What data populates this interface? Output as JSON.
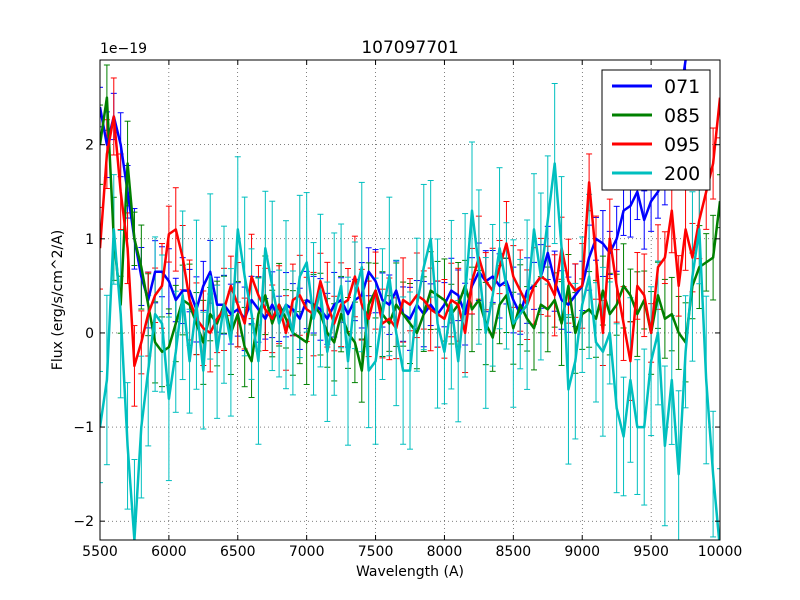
{
  "chart_data": {
    "type": "line",
    "title": "107097701",
    "xlabel": "Wavelength (A)",
    "ylabel": "Flux (erg/s/cm^2/A)",
    "y_scale_label": "1e−19",
    "xlim": [
      5500,
      10000
    ],
    "ylim": [
      -2.2,
      2.9
    ],
    "x_ticks": [
      5500,
      6000,
      6500,
      7000,
      7500,
      8000,
      8500,
      9000,
      9500,
      10000
    ],
    "x_tick_labels": [
      "5500",
      "6000",
      "6500",
      "7000",
      "7500",
      "8000",
      "8500",
      "9000",
      "9500",
      "10000"
    ],
    "y_ticks": [
      -2,
      -1,
      0,
      1,
      2
    ],
    "y_tick_labels": [
      "−2",
      "−1",
      "0",
      "1",
      "2"
    ],
    "grid": true,
    "legend_position": "top-right",
    "series": [
      {
        "name": "071",
        "color": "#0000ff",
        "x": [
          5500,
          5550,
          5600,
          5650,
          5700,
          5750,
          5800,
          5850,
          5900,
          5950,
          6000,
          6050,
          6100,
          6150,
          6200,
          6250,
          6300,
          6350,
          6400,
          6450,
          6500,
          6550,
          6600,
          6650,
          6700,
          6750,
          6800,
          6850,
          6900,
          6950,
          7000,
          7050,
          7100,
          7150,
          7200,
          7250,
          7300,
          7350,
          7400,
          7450,
          7500,
          7550,
          7600,
          7650,
          7700,
          7750,
          7800,
          7850,
          7900,
          7950,
          8000,
          8050,
          8100,
          8150,
          8200,
          8250,
          8300,
          8350,
          8400,
          8450,
          8500,
          8550,
          8600,
          8650,
          8700,
          8750,
          8800,
          8850,
          8900,
          8950,
          9000,
          9050,
          9100,
          9150,
          9200,
          9250,
          9300,
          9350,
          9400,
          9450,
          9500,
          9550,
          9600,
          9650,
          9700,
          9750
        ],
        "y": [
          2.4,
          2.0,
          2.3,
          2.0,
          1.5,
          1.0,
          0.6,
          0.35,
          0.65,
          0.65,
          0.55,
          0.35,
          0.45,
          0.45,
          0.25,
          0.5,
          0.65,
          0.3,
          0.3,
          0.2,
          0.25,
          0.15,
          0.35,
          0.25,
          0.15,
          0.3,
          0.15,
          0.3,
          0.25,
          0.15,
          0.35,
          0.3,
          0.25,
          0.15,
          0.3,
          0.35,
          0.2,
          0.35,
          0.4,
          0.65,
          0.55,
          0.35,
          0.3,
          0.45,
          0.2,
          0.15,
          0.3,
          0.2,
          0.3,
          0.2,
          0.3,
          0.45,
          0.4,
          0.2,
          0.5,
          0.65,
          0.55,
          0.6,
          0.5,
          0.55,
          0.35,
          0.2,
          0.45,
          0.5,
          0.6,
          0.85,
          0.55,
          0.35,
          0.3,
          0.4,
          0.5,
          0.8,
          1.0,
          0.95,
          0.85,
          1.0,
          1.3,
          1.35,
          1.5,
          1.2,
          1.4,
          1.5,
          1.7,
          2.0,
          2.4,
          2.9
        ]
      },
      {
        "name": "085",
        "color": "#008000",
        "x": [
          5500,
          5550,
          5600,
          5650,
          5700,
          5750,
          5800,
          5850,
          5900,
          5950,
          6000,
          6050,
          6100,
          6150,
          6200,
          6250,
          6300,
          6350,
          6400,
          6450,
          6500,
          6550,
          6600,
          6650,
          6700,
          6750,
          6800,
          6850,
          6900,
          6950,
          7000,
          7050,
          7100,
          7150,
          7200,
          7250,
          7300,
          7350,
          7400,
          7450,
          7500,
          7550,
          7600,
          7650,
          7700,
          7750,
          7800,
          7850,
          7900,
          7950,
          8000,
          8050,
          8100,
          8150,
          8200,
          8250,
          8300,
          8350,
          8400,
          8450,
          8500,
          8550,
          8600,
          8650,
          8700,
          8750,
          8800,
          8850,
          8900,
          8950,
          9000,
          9050,
          9100,
          9150,
          9200,
          9250,
          9300,
          9350,
          9400,
          9450,
          9500,
          9550,
          9600,
          9650,
          9700,
          9750,
          9800,
          9850,
          9900,
          9950,
          10000
        ],
        "y": [
          2.0,
          2.5,
          1.0,
          0.3,
          1.8,
          1.0,
          0.7,
          0.3,
          -0.1,
          -0.2,
          -0.15,
          0.1,
          0.35,
          0.3,
          0.1,
          -0.1,
          0.2,
          0.1,
          0.3,
          0.0,
          0.2,
          -0.15,
          -0.3,
          0.2,
          0.4,
          0.1,
          0.3,
          0.15,
          0.0,
          -0.05,
          -0.1,
          0.3,
          0.2,
          0.0,
          -0.1,
          0.2,
          0.0,
          -0.1,
          -0.4,
          0.3,
          0.45,
          0.2,
          0.1,
          0.3,
          0.2,
          0.1,
          0.0,
          0.2,
          0.45,
          0.4,
          0.35,
          0.2,
          0.3,
          0.5,
          0.25,
          0.35,
          0.1,
          -0.05,
          0.3,
          0.4,
          0.05,
          0.3,
          0.15,
          0.05,
          0.3,
          0.25,
          0.35,
          0.1,
          0.5,
          0.0,
          0.2,
          0.25,
          0.15,
          0.45,
          0.2,
          0.3,
          0.5,
          0.4,
          0.2,
          0.35,
          0.0,
          0.4,
          0.15,
          0.2,
          0.0,
          -0.1,
          0.5,
          0.7,
          0.75,
          0.8,
          1.4
        ]
      },
      {
        "name": "095",
        "color": "#ff0000",
        "x": [
          5500,
          5550,
          5600,
          5650,
          5700,
          5750,
          5800,
          5850,
          5900,
          5950,
          6000,
          6050,
          6100,
          6150,
          6200,
          6250,
          6300,
          6350,
          6400,
          6450,
          6500,
          6550,
          6600,
          6650,
          6700,
          6750,
          6800,
          6850,
          6900,
          6950,
          7000,
          7050,
          7100,
          7150,
          7200,
          7250,
          7300,
          7350,
          7400,
          7450,
          7500,
          7550,
          7600,
          7650,
          7700,
          7750,
          7800,
          7850,
          7900,
          7950,
          8000,
          8050,
          8100,
          8150,
          8200,
          8250,
          8300,
          8350,
          8400,
          8450,
          8500,
          8550,
          8600,
          8650,
          8700,
          8750,
          8800,
          8850,
          8900,
          8950,
          9000,
          9050,
          9100,
          9150,
          9200,
          9250,
          9300,
          9350,
          9400,
          9450,
          9500,
          9550,
          9600,
          9650,
          9700,
          9750,
          9800,
          9850,
          9900,
          9950,
          10000
        ],
        "y": [
          0.9,
          1.9,
          2.3,
          1.5,
          0.9,
          -0.35,
          -0.1,
          0.2,
          0.4,
          0.5,
          1.05,
          1.1,
          0.8,
          0.35,
          0.15,
          0.05,
          0.0,
          0.15,
          0.25,
          0.5,
          0.3,
          0.1,
          0.6,
          0.4,
          0.25,
          0.15,
          0.3,
          0.0,
          0.35,
          0.4,
          0.25,
          0.2,
          0.55,
          0.3,
          0.1,
          0.3,
          0.35,
          0.6,
          0.3,
          0.15,
          0.45,
          0.1,
          0.15,
          0.05,
          0.35,
          0.3,
          0.4,
          0.35,
          0.25,
          0.2,
          0.15,
          0.35,
          0.3,
          0.0,
          0.55,
          0.8,
          0.55,
          0.45,
          0.7,
          0.95,
          0.6,
          0.45,
          0.3,
          0.5,
          0.6,
          0.55,
          0.4,
          0.9,
          0.55,
          0.45,
          0.5,
          1.6,
          0.8,
          0.0,
          1.0,
          0.5,
          0.1,
          -0.3,
          0.5,
          0.4,
          0.0,
          0.7,
          0.8,
          1.3,
          0.5,
          1.1,
          0.8,
          1.2,
          1.5,
          1.8,
          2.5
        ]
      },
      {
        "name": "200",
        "color": "#00bfbf",
        "x": [
          5500,
          5550,
          5600,
          5650,
          5700,
          5750,
          5800,
          5850,
          5900,
          5950,
          6000,
          6050,
          6100,
          6150,
          6200,
          6250,
          6300,
          6350,
          6400,
          6450,
          6500,
          6550,
          6600,
          6650,
          6700,
          6750,
          6800,
          6850,
          6900,
          6950,
          7000,
          7050,
          7100,
          7150,
          7200,
          7250,
          7300,
          7350,
          7400,
          7450,
          7500,
          7550,
          7600,
          7650,
          7700,
          7750,
          7800,
          7850,
          7900,
          7950,
          8000,
          8050,
          8100,
          8150,
          8200,
          8250,
          8300,
          8350,
          8400,
          8450,
          8500,
          8550,
          8600,
          8650,
          8700,
          8750,
          8800,
          8850,
          8900,
          8950,
          9000,
          9050,
          9100,
          9150,
          9200,
          9250,
          9300,
          9350,
          9400,
          9450,
          9500,
          9550,
          9600,
          9650,
          9700,
          9750,
          9800,
          9850,
          9900,
          9950,
          10000
        ],
        "y": [
          -1.0,
          -0.5,
          1.1,
          0.2,
          -1.2,
          -2.2,
          -1.0,
          -0.4,
          0.2,
          0.1,
          -0.7,
          -0.2,
          0.4,
          -0.3,
          0.3,
          -0.4,
          0.6,
          -0.2,
          0.3,
          -0.1,
          1.1,
          0.6,
          0.2,
          -0.3,
          0.9,
          0.5,
          0.1,
          0.3,
          0.0,
          0.6,
          0.75,
          0.15,
          0.45,
          -0.2,
          0.2,
          0.5,
          -0.3,
          0.4,
          0.7,
          -0.4,
          -0.3,
          0.2,
          0.6,
          0.0,
          -0.4,
          -0.4,
          0.3,
          0.7,
          1.0,
          0.1,
          -0.2,
          0.3,
          -0.3,
          0.4,
          1.3,
          0.7,
          0.0,
          0.4,
          0.9,
          0.5,
          0.1,
          0.2,
          0.3,
          1.1,
          0.6,
          1.2,
          1.8,
          0.9,
          -0.6,
          -0.3,
          0.3,
          0.6,
          -0.1,
          -0.2,
          0.0,
          -0.8,
          -1.1,
          -0.5,
          -1.0,
          -1.0,
          -0.3,
          0.0,
          -1.2,
          -0.5,
          -1.5,
          -0.2,
          0.6,
          1.1,
          -0.5,
          -1.5,
          -2.3
        ]
      }
    ]
  }
}
